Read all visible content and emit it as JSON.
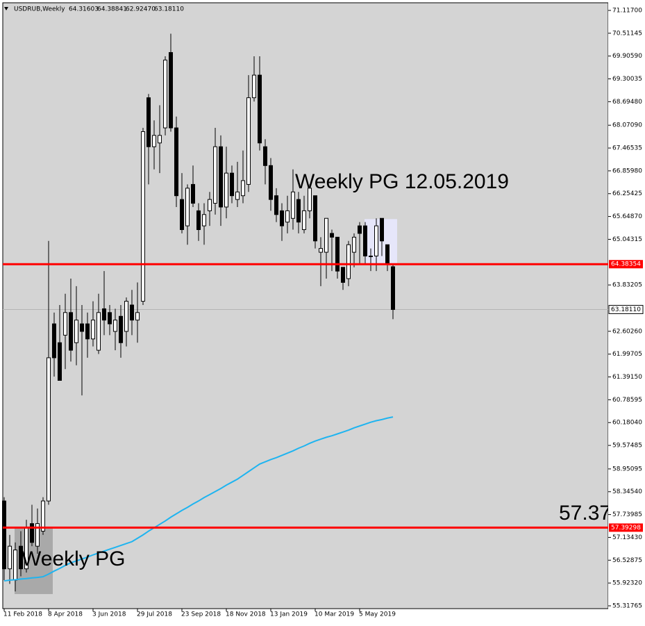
{
  "chart_data": {
    "type": "candlestick",
    "header": {
      "symbol": "USDRUB,Weekly",
      "ohlc": [
        "64.31603",
        "64.38841",
        "62.92470",
        "63.18110"
      ]
    },
    "categories": [
      "11 Feb 2018",
      null,
      null,
      null,
      null,
      null,
      null,
      null,
      "8 Apr 2018",
      null,
      null,
      null,
      null,
      null,
      null,
      null,
      "3 Jun 2018",
      null,
      null,
      null,
      null,
      null,
      null,
      null,
      "29 Jul 2018",
      null,
      null,
      null,
      null,
      null,
      null,
      null,
      "23 Sep 2018",
      null,
      null,
      null,
      null,
      null,
      null,
      null,
      "18 Nov 2018",
      null,
      null,
      null,
      null,
      null,
      null,
      null,
      "13 Jan 2019",
      null,
      null,
      null,
      null,
      null,
      null,
      null,
      "10 Mar 2019",
      null,
      null,
      null,
      null,
      null,
      null,
      null,
      "5 May 2019",
      null,
      null,
      null,
      null,
      null,
      null
    ],
    "open": [
      58.1,
      56.3,
      56.0,
      56.9,
      56.3,
      57.5,
      56.9,
      57.3,
      58.1,
      62.8,
      62.3,
      62.5,
      63.1,
      62.3,
      62.8,
      62.8,
      62.4,
      62.1,
      63.2,
      63.1,
      62.6,
      63.0,
      62.6,
      63.3,
      62.9,
      63.4,
      68.8,
      67.5,
      67.6,
      68.0,
      70.0,
      68.0,
      66.1,
      65.4,
      66.5,
      65.8,
      65.4,
      65.8,
      66.0,
      67.5,
      65.9,
      66.8,
      66.1,
      66.2,
      66.5,
      68.8,
      69.4,
      67.5,
      67.0,
      66.2,
      65.8,
      65.5,
      65.6,
      66.1,
      65.3,
      65.8,
      66.2,
      64.7,
      64.7,
      65.2,
      65.1,
      64.3,
      64.0,
      64.7,
      65.4,
      65.4,
      64.6,
      64.6,
      65.6,
      64.9,
      64.31603
    ],
    "high": [
      58.2,
      57.2,
      57.0,
      57.3,
      57.6,
      58.0,
      57.9,
      58.2,
      65.0,
      63.1,
      63.3,
      63.6,
      64.0,
      63.8,
      63.3,
      63.1,
      63.4,
      63.6,
      64.2,
      63.3,
      63.2,
      63.3,
      63.5,
      63.7,
      63.9,
      68.0,
      68.9,
      68.2,
      68.6,
      69.9,
      70.5,
      68.3,
      66.8,
      66.5,
      67.0,
      66.0,
      66.0,
      66.3,
      68.0,
      67.8,
      67.5,
      67.0,
      67.1,
      67.4,
      69.4,
      69.9,
      69.9,
      67.7,
      67.2,
      66.4,
      66.0,
      66.2,
      66.9,
      66.3,
      66.2,
      66.5,
      66.2,
      65.1,
      65.6,
      65.3,
      65.1,
      64.3,
      65.0,
      65.2,
      65.5,
      65.5,
      64.8,
      65.6,
      65.6,
      64.9,
      64.38841
    ],
    "low": [
      56.0,
      55.9,
      55.7,
      56.1,
      56.2,
      56.9,
      56.7,
      57.2,
      58.0,
      61.4,
      61.3,
      61.6,
      61.8,
      61.7,
      60.9,
      61.9,
      62.2,
      62.0,
      62.5,
      62.5,
      62.1,
      61.9,
      62.2,
      62.5,
      62.3,
      63.3,
      66.5,
      66.9,
      66.8,
      67.8,
      67.9,
      65.9,
      65.2,
      64.9,
      65.9,
      65.0,
      64.9,
      65.4,
      65.7,
      65.4,
      65.6,
      66.0,
      65.9,
      66.0,
      66.3,
      68.7,
      67.4,
      66.5,
      65.8,
      65.5,
      65.0,
      65.2,
      65.3,
      65.2,
      65.2,
      65.6,
      64.8,
      63.8,
      64.0,
      64.2,
      64.0,
      63.7,
      63.8,
      64.3,
      64.4,
      64.4,
      64.2,
      64.2,
      64.6,
      64.2,
      62.9247
    ],
    "close": [
      56.3,
      56.9,
      56.8,
      56.3,
      57.4,
      57.0,
      57.5,
      58.1,
      61.9,
      61.9,
      61.3,
      63.1,
      62.1,
      62.9,
      62.6,
      62.4,
      62.9,
      63.1,
      62.9,
      62.8,
      62.9,
      62.3,
      63.4,
      62.9,
      63.1,
      67.9,
      67.5,
      67.8,
      67.8,
      69.8,
      68.0,
      66.2,
      65.3,
      66.4,
      66.0,
      65.3,
      65.7,
      66.1,
      67.5,
      65.9,
      66.8,
      66.2,
      66.3,
      66.6,
      68.8,
      69.4,
      67.6,
      67.0,
      66.1,
      65.7,
      65.4,
      65.8,
      66.3,
      65.5,
      65.8,
      66.4,
      65.0,
      64.8,
      65.6,
      65.1,
      64.2,
      63.9,
      64.9,
      65.1,
      65.2,
      64.6,
      64.6,
      65.4,
      65.0,
      64.4,
      63.1811
    ],
    "ma": {
      "color": "#1eb4f0",
      "values": [
        55.98,
        56.0,
        56.01,
        56.03,
        56.04,
        56.06,
        56.07,
        56.09,
        56.16,
        56.24,
        56.31,
        56.39,
        56.46,
        56.51,
        56.56,
        56.61,
        56.67,
        56.72,
        56.77,
        56.82,
        56.87,
        56.92,
        56.97,
        57.02,
        57.11,
        57.2,
        57.3,
        57.39,
        57.48,
        57.57,
        57.67,
        57.76,
        57.85,
        57.93,
        58.02,
        58.1,
        58.19,
        58.27,
        58.35,
        58.43,
        58.52,
        58.6,
        58.68,
        58.78,
        58.88,
        58.98,
        59.08,
        59.14,
        59.2,
        59.25,
        59.31,
        59.37,
        59.43,
        59.5,
        59.56,
        59.63,
        59.69,
        59.74,
        59.79,
        59.83,
        59.88,
        59.93,
        59.98,
        60.04,
        60.09,
        60.14,
        60.19,
        60.23,
        60.26,
        60.3,
        60.33
      ]
    },
    "ylim": [
      55.262,
      71.301
    ],
    "yticks": [
      {
        "value": 71.117,
        "label": "71.11700"
      },
      {
        "value": 70.51145,
        "label": "70.51145"
      },
      {
        "value": 69.9059,
        "label": "69.90590"
      },
      {
        "value": 69.30035,
        "label": "69.30035"
      },
      {
        "value": 68.6948,
        "label": "68.69480"
      },
      {
        "value": 68.0709,
        "label": "68.07090"
      },
      {
        "value": 67.46535,
        "label": "67.46535"
      },
      {
        "value": 66.8598,
        "label": "66.85980"
      },
      {
        "value": 66.25425,
        "label": "66.25425"
      },
      {
        "value": 65.6487,
        "label": "65.64870"
      },
      {
        "value": 65.04315,
        "label": "65.04315"
      },
      {
        "value": 63.83205,
        "label": "63.83205"
      },
      {
        "value": 62.6026,
        "label": "62.60260"
      },
      {
        "value": 61.99705,
        "label": "61.99705"
      },
      {
        "value": 61.3915,
        "label": "61.39150"
      },
      {
        "value": 60.78595,
        "label": "60.78595"
      },
      {
        "value": 60.1804,
        "label": "60.18040"
      },
      {
        "value": 59.57485,
        "label": "59.57485"
      },
      {
        "value": 58.95095,
        "label": "58.95095"
      },
      {
        "value": 58.3454,
        "label": "58.34540"
      },
      {
        "value": 57.73985,
        "label": "57.73985"
      },
      {
        "value": 57.1343,
        "label": "57.13430"
      },
      {
        "value": 56.52875,
        "label": "56.52875"
      },
      {
        "value": 55.9232,
        "label": "55.92320"
      },
      {
        "value": 55.31765,
        "label": "55.31765"
      }
    ],
    "hlines": [
      {
        "value": 64.38354,
        "label": "64.38354",
        "color": "#ff0000"
      },
      {
        "value": 57.39298,
        "label": "57.39298",
        "color": "#ff0000"
      }
    ],
    "last_price": {
      "value": 63.1811,
      "label": "63.18110",
      "color": "#b4b4b4"
    },
    "zones": [
      {
        "x": [
          2,
          8
        ],
        "y": [
          55.63,
          57.38
        ],
        "color": "#a9a9a9"
      },
      {
        "x": [
          65,
          70
        ],
        "y": [
          64.39,
          65.58
        ],
        "color": "#e6e6fa"
      }
    ],
    "annotations": [
      "Weekly PG 12.05.2019",
      "Weekly PG",
      "57.37"
    ],
    "bull_color": "#ffffff",
    "bear_color": "#000000",
    "background": "#d4d4d4"
  }
}
